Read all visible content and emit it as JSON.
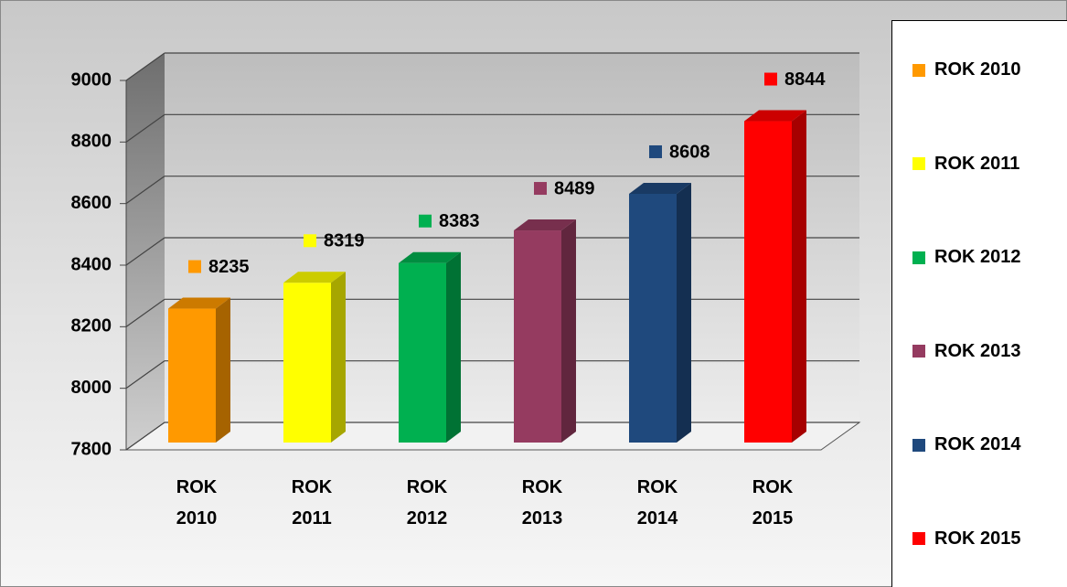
{
  "chart_data": {
    "type": "bar3d",
    "categories": [
      "ROK 2010",
      "ROK 2011",
      "ROK 2012",
      "ROK 2013",
      "ROK 2014",
      "ROK 2015"
    ],
    "values": [
      8235,
      8319,
      8383,
      8489,
      8608,
      8844
    ],
    "colors": [
      "#ff9900",
      "#ffff00",
      "#00b050",
      "#953b60",
      "#1f497d",
      "#ff0000"
    ],
    "ylim": [
      7800,
      9000
    ],
    "yticks": [
      7800,
      8000,
      8200,
      8400,
      8600,
      8800,
      9000
    ],
    "grid": true,
    "legend": "right"
  }
}
